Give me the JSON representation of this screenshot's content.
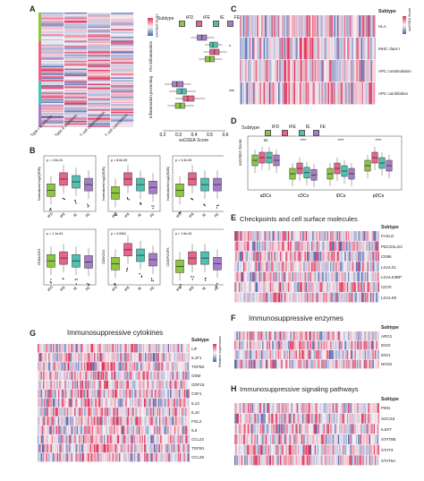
{
  "colors": {
    "tFD": "#8ec641",
    "tFE": "#e8648a",
    "tIE": "#4fc1b2",
    "FE": "#a77cc8",
    "high": "#e0325a",
    "mid": "#f7f3f6",
    "low": "#4563b0"
  },
  "subtypes": [
    "tFD",
    "tFE",
    "IE",
    "FE"
  ],
  "labels": {
    "A": "A",
    "B": "B",
    "C": "C",
    "D": "D",
    "E": "E",
    "F": "F",
    "G": "G",
    "H": "H",
    "subtype": "Subtype",
    "ssgsea_score": "ssGSEA Score",
    "ssgsea_score_short": "ssGSEA Score",
    "relative_expression": "Relative expression"
  },
  "panel_a": {
    "row_labels": [
      "Type I interferon",
      "Type II interferon",
      "T cell costimulation",
      "T cell coinhibition"
    ],
    "box_categories": [
      "Pro-inflammation",
      "Inflammation promoting"
    ],
    "x_ticks": [
      "0.2",
      "0.3",
      "0.4",
      "0.5",
      "0.6"
    ],
    "sig_top": "*",
    "sig_bottom": "****"
  },
  "panel_b": {
    "ylabels": [
      "Normalized log2(SDB)",
      "Normalized log2(SDB)",
      "Normalized log2(SDB)",
      "CD8A/CD3",
      "CD8/CD4",
      "CD8/FOXP3"
    ],
    "pvals": [
      "p = 1.5e-04",
      "p = 8.6e-05",
      "p = 3.3e-05",
      "p = 1.1e-04",
      "p = 0.0061",
      "p = 1.9e-04"
    ],
    "x": [
      "tFD",
      "tFE",
      "IE",
      "FE"
    ]
  },
  "panel_c": {
    "rows": [
      "HLA",
      "MHC class I",
      "APC costimulation",
      "APC coinhibition"
    ]
  },
  "panel_d": {
    "groups": [
      "aDCs",
      "cDCs",
      "iDCs",
      "pDCs"
    ],
    "sig": [
      "ns",
      "****",
      "****",
      "****"
    ]
  },
  "panel_e": {
    "title": "Checkpoints and cell surface molecules",
    "rows": [
      "FASLG",
      "PDCD1LG2",
      "CD86",
      "LGALS1",
      "LGALS3BP",
      "CD70",
      "LGALS9"
    ]
  },
  "panel_f": {
    "title": "Immunosuppressive enzymes",
    "rows": [
      "ARG1",
      "IDO2",
      "IDO1",
      "NOS2"
    ]
  },
  "panel_g": {
    "title": "Immunosuppressive cytokines",
    "rows": [
      "LIF",
      "IL1F1",
      "TGFB2",
      "OSM",
      "GDF15",
      "CSF1",
      "IL13",
      "IL10",
      "FGL2",
      "IL6",
      "CCL22",
      "TGFB1",
      "CCL25"
    ]
  },
  "panel_h": {
    "title": "Immunosuppressive signaling pathways",
    "rows": [
      "PIM1",
      "SOCS3",
      "IL6ST",
      "STAT5B",
      "STAT3",
      "STAT5A"
    ]
  }
}
